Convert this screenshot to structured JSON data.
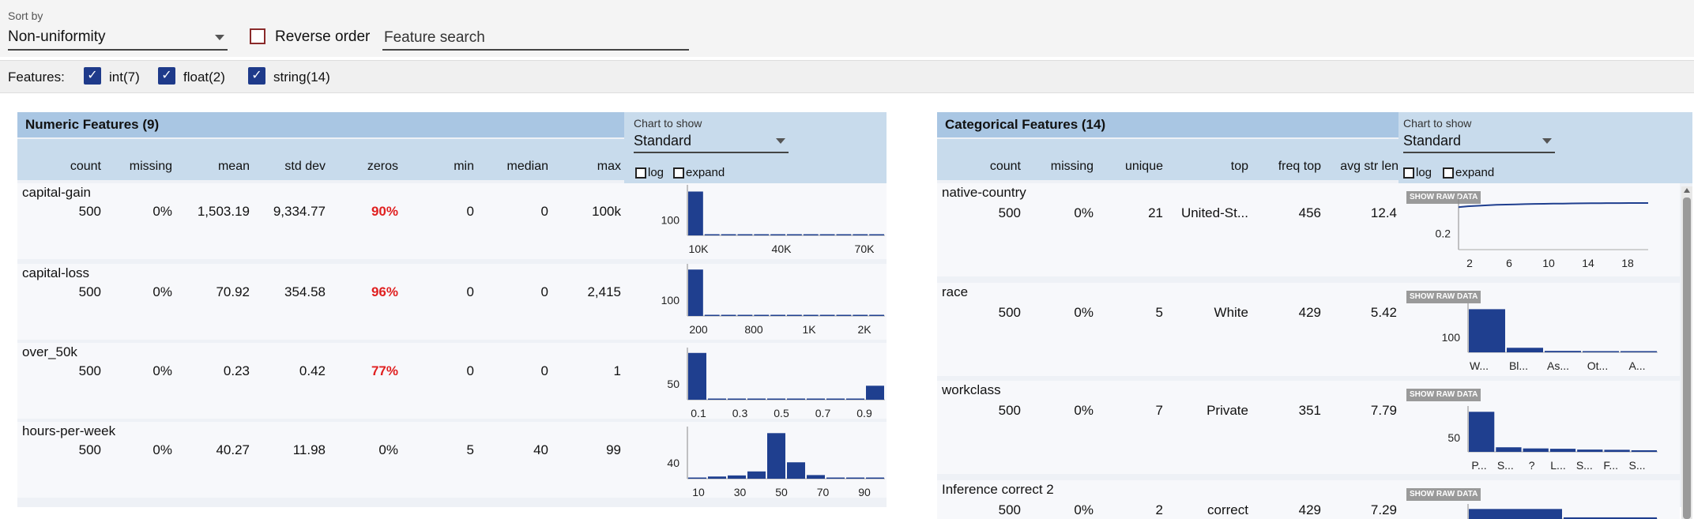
{
  "toolbar": {
    "sort_label": "Sort by",
    "sort_value": "Non-uniformity",
    "reverse_label": "Reverse order",
    "search_placeholder": "Feature search"
  },
  "features_bar": {
    "label": "Features:",
    "filters": [
      {
        "label": "int(7)",
        "checked": true
      },
      {
        "label": "float(2)",
        "checked": true
      },
      {
        "label": "string(14)",
        "checked": true
      }
    ]
  },
  "numeric": {
    "title": "Numeric Features (9)",
    "chart_to_show_label": "Chart to show",
    "chart_value": "Standard",
    "log_label": "log",
    "expand_label": "expand",
    "columns": [
      "count",
      "missing",
      "mean",
      "std dev",
      "zeros",
      "min",
      "median",
      "max"
    ],
    "rows": [
      {
        "name": "capital-gain",
        "count": "500",
        "missing": "0%",
        "mean": "1,503.19",
        "std": "9,334.77",
        "zeros": "90%",
        "zeros_red": true,
        "min": "0",
        "median": "0",
        "max": "100k"
      },
      {
        "name": "capital-loss",
        "count": "500",
        "missing": "0%",
        "mean": "70.92",
        "std": "354.58",
        "zeros": "96%",
        "zeros_red": true,
        "min": "0",
        "median": "0",
        "max": "2,415"
      },
      {
        "name": "over_50k",
        "count": "500",
        "missing": "0%",
        "mean": "0.23",
        "std": "0.42",
        "zeros": "77%",
        "zeros_red": true,
        "min": "0",
        "median": "0",
        "max": "1"
      },
      {
        "name": "hours-per-week",
        "count": "500",
        "missing": "0%",
        "mean": "40.27",
        "std": "11.98",
        "zeros": "0%",
        "zeros_red": false,
        "min": "5",
        "median": "40",
        "max": "99"
      }
    ]
  },
  "categorical": {
    "title": "Categorical Features (14)",
    "chart_to_show_label": "Chart to show",
    "chart_value": "Standard",
    "log_label": "log",
    "expand_label": "expand",
    "raw_button": "SHOW RAW DATA",
    "columns": [
      "count",
      "missing",
      "unique",
      "top",
      "freq top",
      "avg str len"
    ],
    "rows": [
      {
        "name": "native-country",
        "count": "500",
        "missing": "0%",
        "unique": "21",
        "top": "United-St...",
        "freq": "456",
        "avg": "12.4"
      },
      {
        "name": "race",
        "count": "500",
        "missing": "0%",
        "unique": "5",
        "top": "White",
        "freq": "429",
        "avg": "5.42"
      },
      {
        "name": "workclass",
        "count": "500",
        "missing": "0%",
        "unique": "7",
        "top": "Private",
        "freq": "351",
        "avg": "7.79"
      },
      {
        "name": "Inference correct 2",
        "count": "500",
        "missing": "0%",
        "unique": "2",
        "top": "correct",
        "freq": "429",
        "avg": "7.29"
      }
    ]
  },
  "chart_data": [
    {
      "type": "bar",
      "feature": "capital-gain",
      "ytick": "100",
      "xticks": [
        "10K",
        "40K",
        "70K"
      ],
      "values": [
        450,
        4,
        3,
        2,
        2,
        1,
        1,
        1,
        1,
        1,
        1,
        2
      ],
      "ymax": 470
    },
    {
      "type": "bar",
      "feature": "capital-loss",
      "ytick": "100",
      "xticks": [
        "200",
        "800",
        "1K",
        "2K"
      ],
      "values": [
        480,
        2,
        2,
        2,
        3,
        2,
        2,
        4,
        2,
        1,
        1,
        1
      ],
      "ymax": 490
    },
    {
      "type": "bar",
      "feature": "over_50k",
      "ytick": "50",
      "xticks": [
        "0.1",
        "0.3",
        "0.5",
        "0.7",
        "0.9"
      ],
      "values": [
        385,
        0,
        0,
        0,
        0,
        0,
        0,
        0,
        0,
        115
      ],
      "ymax": 390
    },
    {
      "type": "bar",
      "feature": "hours-per-week",
      "ytick": "40",
      "xticks": [
        "10",
        "30",
        "50",
        "70",
        "90"
      ],
      "values": [
        5,
        12,
        18,
        40,
        250,
        90,
        20,
        6,
        4,
        2
      ],
      "ymax": 260
    },
    {
      "type": "line",
      "feature": "native-country",
      "ytick": "0.2",
      "xticks": [
        "2",
        "6",
        "10",
        "14",
        "18"
      ],
      "values": [
        0.91,
        0.93,
        0.94,
        0.95,
        0.96,
        0.965,
        0.97,
        0.975,
        0.98,
        0.983,
        0.986,
        0.988,
        0.99,
        0.992,
        0.994,
        0.996,
        0.997,
        0.998,
        0.999,
        1.0,
        1.0
      ],
      "ymax": 1.05
    },
    {
      "type": "bar",
      "feature": "race",
      "ytick": "100",
      "xticks": [
        "W...",
        "Bl...",
        "As...",
        "Ot...",
        "A..."
      ],
      "values": [
        429,
        45,
        14,
        7,
        5
      ],
      "ymax": 440
    },
    {
      "type": "bar",
      "feature": "workclass",
      "ytick": "50",
      "xticks": [
        "P...",
        "S...",
        "?",
        "L...",
        "S...",
        "F...",
        "S..."
      ],
      "values": [
        351,
        40,
        30,
        27,
        20,
        18,
        14
      ],
      "ymax": 360
    },
    {
      "type": "bar",
      "feature": "Inference correct 2",
      "ytick": "",
      "xticks": [],
      "values": [
        429,
        71
      ],
      "ymax": 440
    }
  ]
}
